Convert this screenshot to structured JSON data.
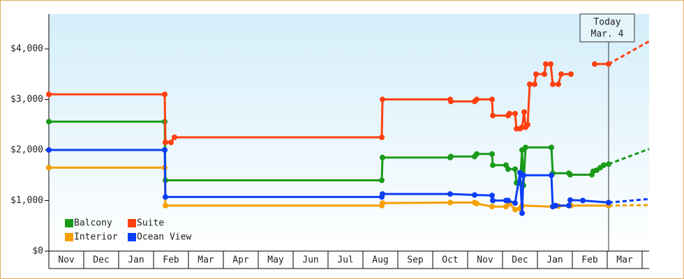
{
  "chart_data": {
    "type": "line",
    "xlim": [
      0,
      17.2
    ],
    "ylim": [
      0,
      4690
    ],
    "xticks": [
      {
        "value": 0.5,
        "label": "Nov"
      },
      {
        "value": 1.5,
        "label": "Dec"
      },
      {
        "value": 2.5,
        "label": "Jan"
      },
      {
        "value": 3.5,
        "label": "Feb"
      },
      {
        "value": 4.5,
        "label": "Mar"
      },
      {
        "value": 5.5,
        "label": "Apr"
      },
      {
        "value": 6.5,
        "label": "May"
      },
      {
        "value": 7.5,
        "label": "Jun"
      },
      {
        "value": 8.5,
        "label": "Jul"
      },
      {
        "value": 9.5,
        "label": "Aug"
      },
      {
        "value": 10.5,
        "label": "Sep"
      },
      {
        "value": 11.5,
        "label": "Oct"
      },
      {
        "value": 12.5,
        "label": "Nov"
      },
      {
        "value": 13.5,
        "label": "Dec"
      },
      {
        "value": 14.5,
        "label": "Jan"
      },
      {
        "value": 15.5,
        "label": "Feb"
      },
      {
        "value": 16.5,
        "label": "Mar"
      }
    ],
    "yticks": [
      {
        "value": 0,
        "label": "$0"
      },
      {
        "value": 1000,
        "label": "$1,000"
      },
      {
        "value": 2000,
        "label": "$2,000"
      },
      {
        "value": 3000,
        "label": "$3,000"
      },
      {
        "value": 4000,
        "label": "$4,000"
      }
    ],
    "annotation": {
      "x": 16.04,
      "lines": [
        "Today",
        "Mar. 4"
      ]
    },
    "series": [
      {
        "name": "Balcony",
        "color": "#1a9a1a",
        "x": [
          0,
          3.32,
          3.34,
          9.54,
          9.56,
          11.5,
          11.52,
          12.2,
          12.26,
          12.7,
          12.72,
          13.1,
          13.16,
          13.36,
          13.4,
          13.5,
          13.56,
          13.6,
          13.66,
          14.4,
          14.44,
          14.9,
          14.94,
          15.56,
          15.6,
          15.7,
          15.8,
          15.9,
          16.04
        ],
        "values": [
          2560,
          2560,
          1400,
          1400,
          1850,
          1850,
          1870,
          1870,
          1920,
          1920,
          1700,
          1700,
          1620,
          1620,
          1350,
          1350,
          2000,
          1300,
          2050,
          2050,
          1540,
          1540,
          1510,
          1510,
          1580,
          1600,
          1650,
          1700,
          1720
        ],
        "forecast": {
          "x": 17.2,
          "value": 2020
        }
      },
      {
        "name": "Suite",
        "color": "#ff4010",
        "x": [
          0,
          3.32,
          3.34,
          3.5,
          3.6,
          9.54,
          9.56,
          11.5,
          11.52,
          12.2,
          12.26,
          12.7,
          12.72,
          13.16,
          13.2,
          13.36,
          13.4,
          13.5,
          13.56,
          13.62,
          13.66,
          13.72,
          13.78,
          13.92,
          13.96,
          14.2,
          14.24,
          14.38,
          14.44,
          14.6,
          14.68,
          14.96,
          15.3,
          15.64,
          16.04
        ],
        "values": [
          3100,
          3100,
          2150,
          2150,
          2250,
          2250,
          3000,
          3000,
          2960,
          2960,
          3000,
          3000,
          2680,
          2680,
          2720,
          2720,
          2420,
          2420,
          2450,
          2750,
          2450,
          2500,
          3300,
          3300,
          3500,
          3500,
          3700,
          3700,
          3300,
          3300,
          3500,
          3500,
          null,
          3700,
          3700
        ],
        "forecast": {
          "x": 17.2,
          "value": 4150
        }
      },
      {
        "name": "Interior",
        "color": "#f5a000",
        "x": [
          0,
          3.32,
          3.34,
          9.54,
          9.56,
          11.5,
          12.2,
          12.26,
          12.7,
          13.1,
          13.2,
          13.36,
          13.5,
          13.56,
          14.44,
          14.6,
          14.96,
          16.04
        ],
        "values": [
          1650,
          1650,
          900,
          900,
          950,
          960,
          960,
          940,
          880,
          880,
          940,
          820,
          840,
          900,
          880,
          890,
          900,
          900
        ],
        "forecast": {
          "x": 17.2,
          "value": 910
        }
      },
      {
        "name": "Ocean View",
        "color": "#0b3ef5",
        "x": [
          0,
          3.32,
          3.34,
          9.54,
          9.56,
          11.5,
          12.2,
          12.7,
          12.72,
          13.1,
          13.16,
          13.36,
          13.5,
          13.56,
          13.6,
          14.4,
          14.44,
          14.52,
          14.9,
          14.94,
          15.3,
          16.04
        ],
        "values": [
          2000,
          2000,
          1070,
          1070,
          1130,
          1130,
          1110,
          1100,
          1000,
          1000,
          1000,
          950,
          1550,
          750,
          1500,
          1500,
          880,
          900,
          900,
          1010,
          1000,
          960
        ],
        "forecast": {
          "x": 17.2,
          "value": 1030
        }
      }
    ]
  }
}
